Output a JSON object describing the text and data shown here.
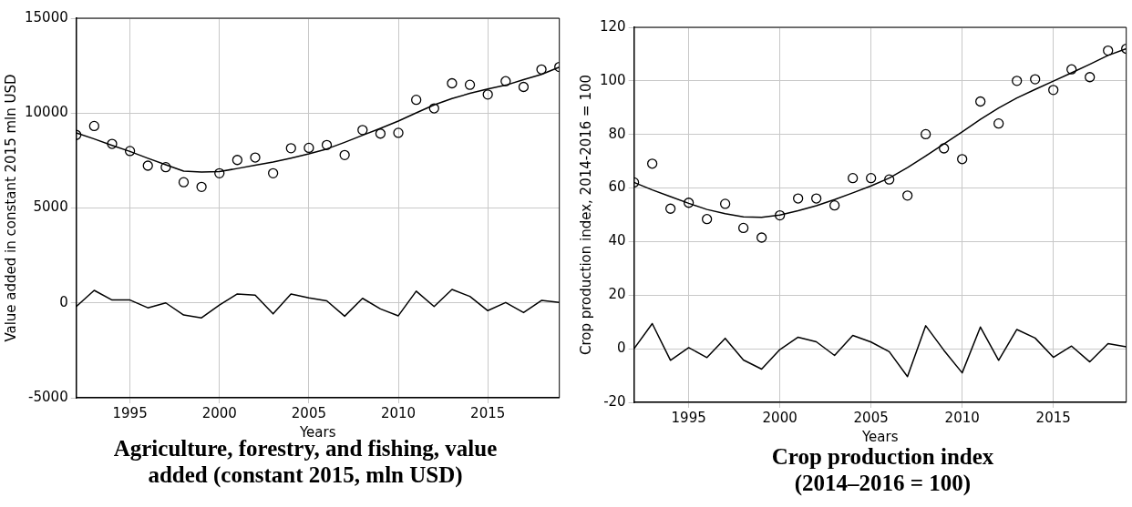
{
  "chart_data": [
    {
      "type": "line",
      "title": "Agriculture, forestry, and fishing, value added (constant 2015, mln USD)",
      "xlabel": "Years",
      "ylabel": "Value added in constant 2015 mln USD",
      "x": [
        1992,
        1993,
        1994,
        1995,
        1996,
        1997,
        1998,
        1999,
        2000,
        2001,
        2002,
        2003,
        2004,
        2005,
        2006,
        2007,
        2008,
        2009,
        2010,
        2011,
        2012,
        2013,
        2014,
        2015,
        2016,
        2017,
        2018,
        2019
      ],
      "series": [
        {
          "type": "scatter",
          "marker": "circle",
          "color": "#000000",
          "values": [
            8850,
            9320,
            8380,
            8000,
            7230,
            7150,
            6360,
            6110,
            6830,
            7530,
            7660,
            6830,
            8150,
            8170,
            8320,
            7790,
            9110,
            8920,
            8960,
            10700,
            10250,
            11570,
            11490,
            10980,
            11680,
            11380,
            12300,
            12430
          ]
        },
        {
          "marker": "none",
          "color": "#000000",
          "values": [
            8960,
            8640,
            8300,
            7980,
            7620,
            7280,
            6940,
            6890,
            6920,
            7080,
            7250,
            7420,
            7630,
            7850,
            8110,
            8460,
            8830,
            9200,
            9580,
            10010,
            10430,
            10770,
            11040,
            11270,
            11470,
            11760,
            12040,
            12420
          ]
        },
        {
          "marker": "none",
          "color": "#000000",
          "values": [
            -190,
            660,
            150,
            150,
            -260,
            0,
            -640,
            -790,
            -110,
            470,
            410,
            -580,
            470,
            260,
            110,
            -700,
            240,
            -320,
            -680,
            620,
            -190,
            710,
            340,
            -410,
            20,
            -510,
            130,
            20
          ]
        }
      ],
      "xlim": [
        1992,
        2019
      ],
      "xticks": [
        1995,
        2000,
        2005,
        2010,
        2015
      ],
      "ylim": [
        -5000,
        15000
      ],
      "yticks": [
        -5000,
        0,
        5000,
        10000,
        15000
      ],
      "grid": true,
      "legend": false
    },
    {
      "type": "line",
      "title": "Crop production index (2014–2016 = 100)",
      "xlabel": "Years",
      "ylabel": "Crop production index, 2014-2016 = 100",
      "x": [
        1992,
        1993,
        1994,
        1995,
        1996,
        1997,
        1998,
        1999,
        2000,
        2001,
        2002,
        2003,
        2004,
        2005,
        2006,
        2007,
        2008,
        2009,
        2010,
        2011,
        2012,
        2013,
        2014,
        2015,
        2016,
        2017,
        2018,
        2019
      ],
      "series": [
        {
          "type": "scatter",
          "marker": "circle",
          "color": "#000000",
          "values": [
            62.1,
            69.1,
            52.3,
            54.5,
            48.4,
            54.1,
            45.1,
            41.5,
            49.8,
            56.1,
            56.1,
            53.5,
            63.7,
            63.7,
            63.2,
            57.2,
            80.1,
            74.8,
            70.8,
            92.3,
            84.1,
            100,
            100.6,
            96.6,
            104.3,
            101.4,
            111.3,
            112
          ]
        },
        {
          "marker": "none",
          "color": "#000000",
          "values": [
            62.1,
            59.3,
            56.8,
            54.3,
            52,
            50.4,
            49.2,
            49.1,
            49.9,
            51.5,
            53.4,
            55.7,
            58.2,
            60.8,
            63.7,
            67.6,
            72,
            76.5,
            81,
            85.6,
            89.9,
            93.6,
            96.8,
            99.9,
            103,
            106.2,
            109.5,
            112
          ]
        },
        {
          "marker": "none",
          "color": "#000000",
          "values": [
            0,
            9.4,
            -4.3,
            0.4,
            -3.3,
            3.9,
            -4.2,
            -7.6,
            -0.3,
            4.3,
            2.6,
            -2.5,
            5,
            2.5,
            -1.1,
            -10.4,
            8.6,
            -0.6,
            -9,
            8.1,
            -4.3,
            7.2,
            4,
            -3.2,
            1,
            -4.9,
            1.9,
            0.7
          ]
        }
      ],
      "xlim": [
        1992,
        2019
      ],
      "xticks": [
        1995,
        2000,
        2005,
        2010,
        2015
      ],
      "ylim": [
        -20,
        120
      ],
      "yticks": [
        -20,
        0,
        20,
        40,
        60,
        80,
        100,
        120
      ],
      "grid": true,
      "legend": false
    }
  ]
}
